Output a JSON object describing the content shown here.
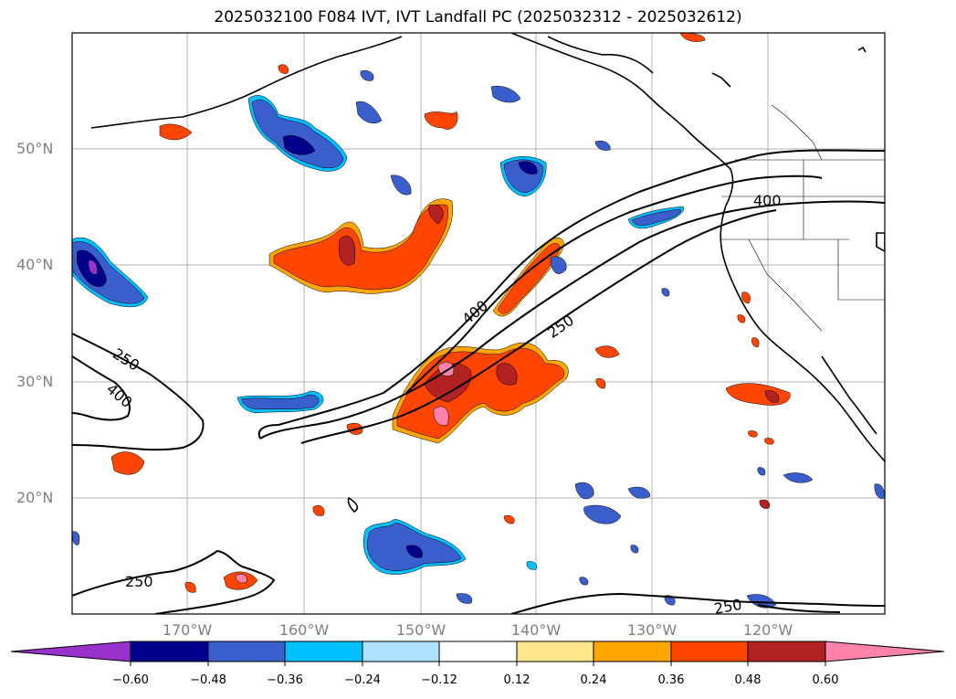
{
  "title": "2025032100 F084 IVT, IVT Landfall PC (2025032312 - 2025032612)",
  "lat_labels": [
    "50°N",
    "40°N",
    "30°N",
    "20°N"
  ],
  "lon_labels": [
    "170°W",
    "160°W",
    "150°W",
    "140°W",
    "130°W",
    "120°W"
  ],
  "contour_labels": [
    "250",
    "400",
    "400",
    "250",
    "250",
    "400",
    "250"
  ],
  "colorbar": {
    "ticks": [
      "−0.60",
      "−0.48",
      "−0.36",
      "−0.24",
      "−0.12",
      "0.12",
      "0.24",
      "0.36",
      "0.48",
      "0.60"
    ],
    "colors": [
      "#9932cc",
      "#00008b",
      "#3a5fcd",
      "#00bfff",
      "#b0e2ff",
      "#ffffff",
      "#ffe88c",
      "#ffa500",
      "#ff4500",
      "#b22222",
      "#ff82ab"
    ]
  }
}
